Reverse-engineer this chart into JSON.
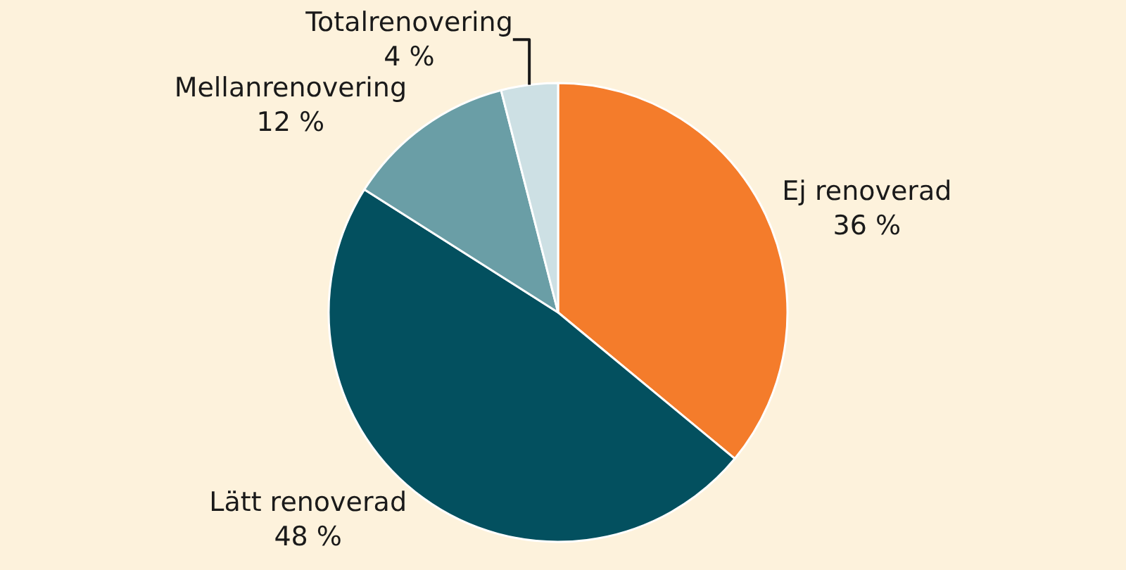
{
  "chart_data": {
    "type": "pie",
    "categories": [
      "Ej renoverad",
      "Lätt renoverad",
      "Mellanrenovering",
      "Totalrenovering"
    ],
    "values": [
      36,
      48,
      12,
      4
    ],
    "value_labels": [
      "36 %",
      "48 %",
      "12 %",
      "4 %"
    ],
    "colors": [
      "#f47c2b",
      "#03505f",
      "#6a9ea6",
      "#cde0e4"
    ],
    "legend": false
  }
}
